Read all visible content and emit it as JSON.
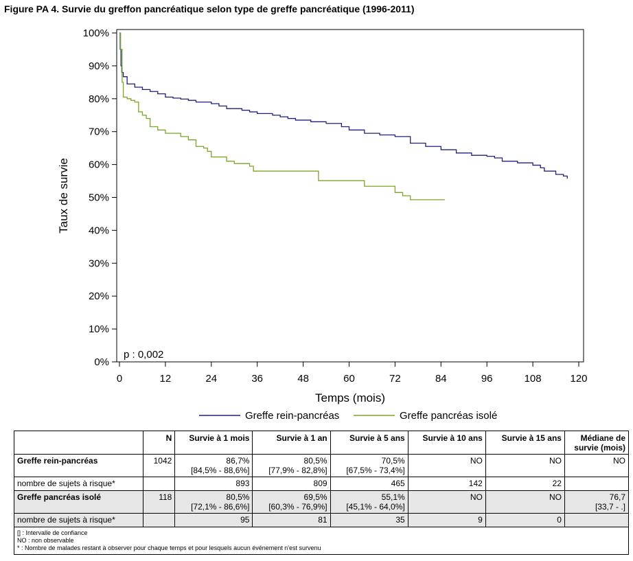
{
  "figure_title": "Figure PA 4. Survie du greffon pancréatique selon type de greffe pancréatique (1996-2011)",
  "chart_data": {
    "type": "line",
    "ylabel": "Taux de survie",
    "xlabel": "Temps (mois)",
    "xlim": [
      0,
      120
    ],
    "ylim": [
      0,
      100
    ],
    "x_ticks": [
      0,
      12,
      24,
      36,
      48,
      60,
      72,
      84,
      96,
      108,
      120
    ],
    "y_ticks": [
      0,
      10,
      20,
      30,
      40,
      50,
      60,
      70,
      80,
      90,
      100
    ],
    "x_tick_labels": [
      "0",
      "12",
      "24",
      "36",
      "48",
      "60",
      "72",
      "84",
      "96",
      "108",
      "120"
    ],
    "y_tick_labels": [
      "0%",
      "10%",
      "20%",
      "30%",
      "40%",
      "50%",
      "60%",
      "70%",
      "80%",
      "90%",
      "100%"
    ],
    "annotation": "p : 0,002",
    "legend_placement": "bottom",
    "grid": false,
    "series": [
      {
        "name": "Greffe rein-pancréas",
        "color": "#1f1f7a",
        "step": true,
        "x": [
          0,
          0.2,
          0.4,
          0.6,
          1,
          2,
          4,
          6,
          8,
          10,
          12,
          14,
          16,
          18,
          20,
          24,
          26,
          28,
          32,
          34,
          36,
          40,
          42,
          44,
          46,
          50,
          54,
          58,
          60,
          64,
          68,
          72,
          76,
          80,
          84,
          88,
          92,
          96,
          98,
          100,
          104,
          108,
          110,
          111,
          114,
          116,
          117
        ],
        "y": [
          100,
          95,
          90,
          88,
          86.7,
          84.5,
          83.5,
          82.8,
          82.2,
          81.5,
          80.5,
          80.2,
          79.9,
          79.5,
          79,
          78.5,
          77.8,
          77,
          76.5,
          76,
          75.5,
          75,
          74.5,
          74,
          73.5,
          73,
          72.5,
          71.5,
          70.5,
          69.5,
          69,
          68.5,
          66.5,
          65.5,
          64.5,
          63.5,
          62.8,
          62.5,
          62,
          61,
          60.5,
          59.8,
          59,
          58,
          57,
          56.5,
          55.7
        ]
      },
      {
        "name": "Greffe pancréas isolé",
        "color": "#7aa526",
        "step": true,
        "x": [
          0,
          0.3,
          0.7,
          1,
          2,
          3,
          4,
          5,
          6,
          7,
          8,
          10,
          12,
          16,
          18,
          20,
          22,
          23,
          24,
          28,
          30,
          34,
          35,
          36,
          48,
          52,
          56,
          60,
          64,
          70,
          72,
          74,
          76,
          85
        ],
        "y": [
          100,
          95,
          85,
          80.5,
          80,
          79.5,
          79,
          76,
          75,
          74,
          71.5,
          70.5,
          69.5,
          68.5,
          67.5,
          65.5,
          65,
          64,
          62.3,
          61,
          60.3,
          59.5,
          58,
          58,
          58,
          55.1,
          55.1,
          55.1,
          53.4,
          53.4,
          51.5,
          50.5,
          49.3,
          49.3
        ]
      }
    ]
  },
  "table": {
    "headers": [
      "",
      "N",
      "Survie à 1 mois",
      "Survie à 1 an",
      "Survie à 5 ans",
      "Survie à 10 ans",
      "Survie à 15 ans",
      "Médiane de survie (mois)"
    ],
    "rows": [
      {
        "label": "Greffe rein-pancréas",
        "n": "1042",
        "m1": "86,7%",
        "m1_ci": "[84,5% - 88,6%]",
        "y1": "80,5%",
        "y1_ci": "[77,9% - 82,8%]",
        "y5": "70,5%",
        "y5_ci": "[67,5% - 73,4%]",
        "y10": "NO",
        "y15": "NO",
        "median": "NO",
        "median_ci": ""
      },
      {
        "label": "nombre de sujets à risque*",
        "m1": "893",
        "y1": "809",
        "y5": "465",
        "y10": "142",
        "y15": "22"
      },
      {
        "label": "Greffe pancréas isolé",
        "n": "118",
        "m1": "80,5%",
        "m1_ci": "[72,1% - 86,6%]",
        "y1": "69,5%",
        "y1_ci": "[60,3% - 76,9%]",
        "y5": "55,1%",
        "y5_ci": "[45,1% - 64,0%]",
        "y10": "NO",
        "y15": "NO",
        "median": "76,7",
        "median_ci": "[33,7 - .]"
      },
      {
        "label": "nombre de sujets à risque*",
        "m1": "95",
        "y1": "81",
        "y5": "35",
        "y10": "9",
        "y15": "0"
      }
    ],
    "notes": [
      "[] : Intervalle de confiance",
      "NO : non observable",
      "* : Nombre de malades restant à observer pour chaque temps et pour lesquels aucun événement n'est survenu"
    ]
  }
}
